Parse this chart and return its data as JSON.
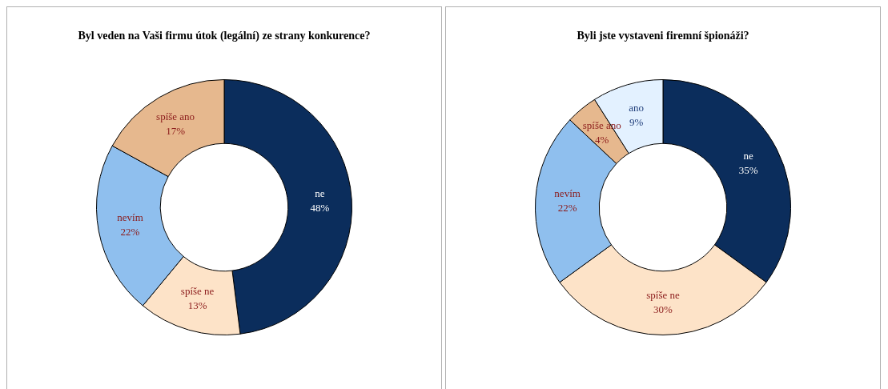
{
  "chart_data": [
    {
      "type": "donut",
      "title": "Byl veden na Vaši firmu útok (legální) ze strany konkurence?",
      "categories": [
        "ne",
        "spíše ne",
        "nevím",
        "spíše ano"
      ],
      "values": [
        48,
        13,
        22,
        17
      ],
      "value_labels": [
        "48%",
        "13%",
        "22%",
        "17%"
      ],
      "colors": [
        "#0b2d5c",
        "#fde3c8",
        "#8fbfee",
        "#e6b88e"
      ],
      "legend": false
    },
    {
      "type": "donut",
      "title": "Byli jste vystaveni firemní špionáži?",
      "categories": [
        "ne",
        "spíše ne",
        "nevím",
        "spíše ano",
        "ano"
      ],
      "values": [
        35,
        30,
        22,
        4,
        9
      ],
      "value_labels": [
        "35%",
        "30%",
        "22%",
        "4%",
        "9%"
      ],
      "colors": [
        "#0b2d5c",
        "#fde3c8",
        "#8fbfee",
        "#e6b88e",
        "#e3f1ff"
      ],
      "legend": false
    }
  ]
}
